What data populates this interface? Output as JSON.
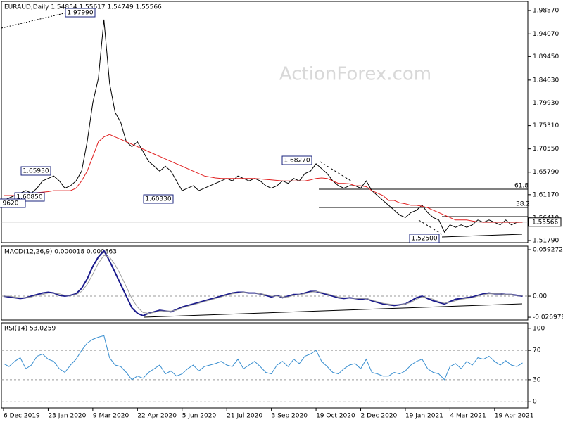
{
  "chart_data": [
    {
      "type": "line",
      "title": "EURAUD,Daily  1.54854 1.55617 1.54749 1.55566",
      "watermark": "ActionForex.com",
      "ylim": [
        1.5136,
        2.0073
      ],
      "yticks": [
        {
          "value": 1.9887,
          "label": "1.98870"
        },
        {
          "value": 1.9407,
          "label": "1.94070"
        },
        {
          "value": 1.8945,
          "label": "1.89450"
        },
        {
          "value": 1.8463,
          "label": "1.84630"
        },
        {
          "value": 1.7993,
          "label": "1.79930"
        },
        {
          "value": 1.7531,
          "label": "1.75310"
        },
        {
          "value": 1.7055,
          "label": "1.70550"
        },
        {
          "value": 1.6579,
          "label": "1.65790"
        },
        {
          "value": 1.6117,
          "label": "1.61170"
        },
        {
          "value": 1.5641,
          "label": "1.56410"
        },
        {
          "value": 1.5179,
          "label": "1.51790"
        }
      ],
      "annotations": [
        "1.97990",
        "1.65930",
        "1.60850",
        "9620",
        "1.60330",
        "1.68270",
        "1.52500",
        "61.8",
        "38.2"
      ],
      "series": [
        {
          "color": "#000000",
          "values": [
            1.6,
            1.605,
            1.61,
            1.615,
            1.62,
            1.615,
            1.625,
            1.64,
            1.645,
            1.65,
            1.64,
            1.625,
            1.63,
            1.64,
            1.66,
            1.72,
            1.8,
            1.85,
            1.97,
            1.84,
            1.78,
            1.76,
            1.72,
            1.71,
            1.72,
            1.7,
            1.68,
            1.67,
            1.66,
            1.67,
            1.66,
            1.64,
            1.62,
            1.625,
            1.63,
            1.62,
            1.625,
            1.63,
            1.635,
            1.64,
            1.645,
            1.64,
            1.65,
            1.645,
            1.64,
            1.645,
            1.64,
            1.63,
            1.625,
            1.63,
            1.64,
            1.635,
            1.645,
            1.64,
            1.655,
            1.66,
            1.675,
            1.665,
            1.655,
            1.64,
            1.63,
            1.625,
            1.63,
            1.63,
            1.625,
            1.64,
            1.62,
            1.61,
            1.6,
            1.59,
            1.58,
            1.57,
            1.565,
            1.575,
            1.58,
            1.59,
            1.575,
            1.565,
            1.56,
            1.535,
            1.55,
            1.545,
            1.55,
            1.545,
            1.55,
            1.56,
            1.555,
            1.56,
            1.555,
            1.55,
            1.56,
            1.55,
            1.555,
            1.55566
          ]
        },
        {
          "color": "#e02020",
          "values": [
            1.61,
            1.61,
            1.61,
            1.612,
            1.614,
            1.615,
            1.616,
            1.617,
            1.618,
            1.62,
            1.62,
            1.62,
            1.62,
            1.625,
            1.64,
            1.66,
            1.69,
            1.72,
            1.73,
            1.735,
            1.73,
            1.725,
            1.72,
            1.715,
            1.71,
            1.705,
            1.7,
            1.695,
            1.69,
            1.685,
            1.68,
            1.675,
            1.67,
            1.665,
            1.66,
            1.655,
            1.65,
            1.648,
            1.646,
            1.645,
            1.645,
            1.645,
            1.645,
            1.645,
            1.645,
            1.645,
            1.644,
            1.643,
            1.642,
            1.641,
            1.64,
            1.64,
            1.64,
            1.64,
            1.64,
            1.642,
            1.645,
            1.646,
            1.645,
            1.64,
            1.635,
            1.635,
            1.634,
            1.63,
            1.63,
            1.628,
            1.62,
            1.615,
            1.61,
            1.6,
            1.6,
            1.595,
            1.593,
            1.59,
            1.59,
            1.588,
            1.585,
            1.58,
            1.575,
            1.57,
            1.565,
            1.56,
            1.56,
            1.56,
            1.558,
            1.556,
            1.555,
            1.555,
            1.555,
            1.555,
            1.555,
            1.555,
            1.555,
            1.555
          ]
        }
      ]
    },
    {
      "type": "line",
      "title": "MACD(12,26,9) 0.000018 0.000863",
      "ylim": [
        -0.0305,
        0.0638
      ],
      "yticks": [
        0.059272,
        {
          "value": 0,
          "label": "0.00"
        },
        -0.026978
      ],
      "series": [
        {
          "color": "#1a1a8c",
          "values": [
            0,
            -0.001,
            -0.002,
            -0.003,
            -0.002,
            0,
            0.002,
            0.004,
            0.005,
            0.004,
            0.001,
            0,
            0.001,
            0.003,
            0.01,
            0.022,
            0.038,
            0.05,
            0.058,
            0.045,
            0.03,
            0.015,
            0,
            -0.015,
            -0.022,
            -0.025,
            -0.022,
            -0.02,
            -0.018,
            -0.019,
            -0.02,
            -0.017,
            -0.014,
            -0.012,
            -0.01,
            -0.008,
            -0.006,
            -0.004,
            -0.002,
            0,
            0.002,
            0.004,
            0.005,
            0.005,
            0.004,
            0.004,
            0.003,
            0.001,
            -0.001,
            0.001,
            -0.002,
            0,
            0.002,
            0.002,
            0.004,
            0.006,
            0.006,
            0.004,
            0.002,
            0,
            -0.002,
            -0.003,
            -0.002,
            -0.003,
            -0.004,
            -0.003,
            -0.006,
            -0.008,
            -0.01,
            -0.011,
            -0.012,
            -0.011,
            -0.01,
            -0.006,
            -0.002,
            0,
            -0.003,
            -0.006,
            -0.008,
            -0.01,
            -0.007,
            -0.004,
            -0.003,
            -0.002,
            -0.001,
            0.001,
            0.003,
            0.004,
            0.003,
            0.003,
            0.002,
            0.002,
            0.001,
            1.8e-05
          ]
        },
        {
          "color": "#a0a0a0",
          "values": [
            0,
            0,
            -0.001,
            -0.002,
            -0.002,
            -0.001,
            0.001,
            0.002,
            0.004,
            0.004,
            0.003,
            0.001,
            0.001,
            0.002,
            0.006,
            0.015,
            0.028,
            0.042,
            0.052,
            0.05,
            0.04,
            0.027,
            0.012,
            -0.003,
            -0.014,
            -0.021,
            -0.022,
            -0.021,
            -0.019,
            -0.019,
            -0.019,
            -0.018,
            -0.015,
            -0.013,
            -0.011,
            -0.009,
            -0.007,
            -0.005,
            -0.003,
            -0.001,
            0.001,
            0.003,
            0.004,
            0.005,
            0.004,
            0.004,
            0.003,
            0.002,
            0,
            0,
            -0.001,
            -0.001,
            0.001,
            0.002,
            0.003,
            0.005,
            0.006,
            0.005,
            0.003,
            0.001,
            -0.001,
            -0.002,
            -0.002,
            -0.003,
            -0.003,
            -0.003,
            -0.005,
            -0.007,
            -0.009,
            -0.01,
            -0.011,
            -0.011,
            -0.01,
            -0.008,
            -0.004,
            -0.001,
            -0.002,
            -0.004,
            -0.007,
            -0.009,
            -0.008,
            -0.006,
            -0.004,
            -0.003,
            -0.002,
            0,
            0.002,
            0.003,
            0.003,
            0.003,
            0.002,
            0.002,
            0.001,
            0.000863
          ]
        }
      ]
    },
    {
      "type": "line",
      "title": "RSI(14) 53.0259",
      "ylim": [
        -8.4,
        107.5
      ],
      "yticks": [
        100,
        70,
        30,
        0
      ],
      "categories": [
        "6 Dec 2019",
        null,
        null,
        null,
        null,
        null,
        null,
        null,
        "23 Jan 2020",
        null,
        null,
        null,
        null,
        null,
        null,
        null,
        "9 Mar 2020",
        null,
        null,
        null,
        null,
        null,
        null,
        null,
        "22 Apr 2020",
        null,
        null,
        null,
        null,
        null,
        null,
        null,
        "5 Jun 2020",
        null,
        null,
        null,
        null,
        null,
        null,
        null,
        "21 Jul 2020",
        null,
        null,
        null,
        null,
        null,
        null,
        null,
        "3 Sep 2020",
        null,
        null,
        null,
        null,
        null,
        null,
        null,
        "19 Oct 2020",
        null,
        null,
        null,
        null,
        null,
        null,
        null,
        "2 Dec 2020",
        null,
        null,
        null,
        null,
        null,
        null,
        null,
        "19 Jan 2021",
        null,
        null,
        null,
        null,
        null,
        null,
        null,
        "4 Mar 2021",
        null,
        null,
        null,
        null,
        null,
        null,
        null,
        "19 Apr 2021",
        null,
        null,
        null,
        null,
        null
      ],
      "series": [
        {
          "color": "#3a8fd0",
          "values": [
            52,
            48,
            55,
            60,
            45,
            50,
            62,
            65,
            58,
            55,
            45,
            40,
            50,
            58,
            70,
            80,
            85,
            88,
            90,
            60,
            50,
            48,
            40,
            30,
            35,
            32,
            40,
            45,
            50,
            38,
            42,
            35,
            38,
            45,
            50,
            42,
            48,
            50,
            52,
            55,
            50,
            48,
            58,
            45,
            50,
            55,
            48,
            40,
            38,
            50,
            55,
            48,
            58,
            52,
            62,
            65,
            70,
            55,
            48,
            40,
            38,
            45,
            50,
            52,
            45,
            58,
            40,
            38,
            35,
            35,
            40,
            38,
            42,
            50,
            55,
            58,
            45,
            40,
            38,
            30,
            48,
            52,
            45,
            55,
            50,
            60,
            58,
            62,
            55,
            50,
            56,
            50,
            48,
            53.0259
          ]
        }
      ]
    }
  ]
}
